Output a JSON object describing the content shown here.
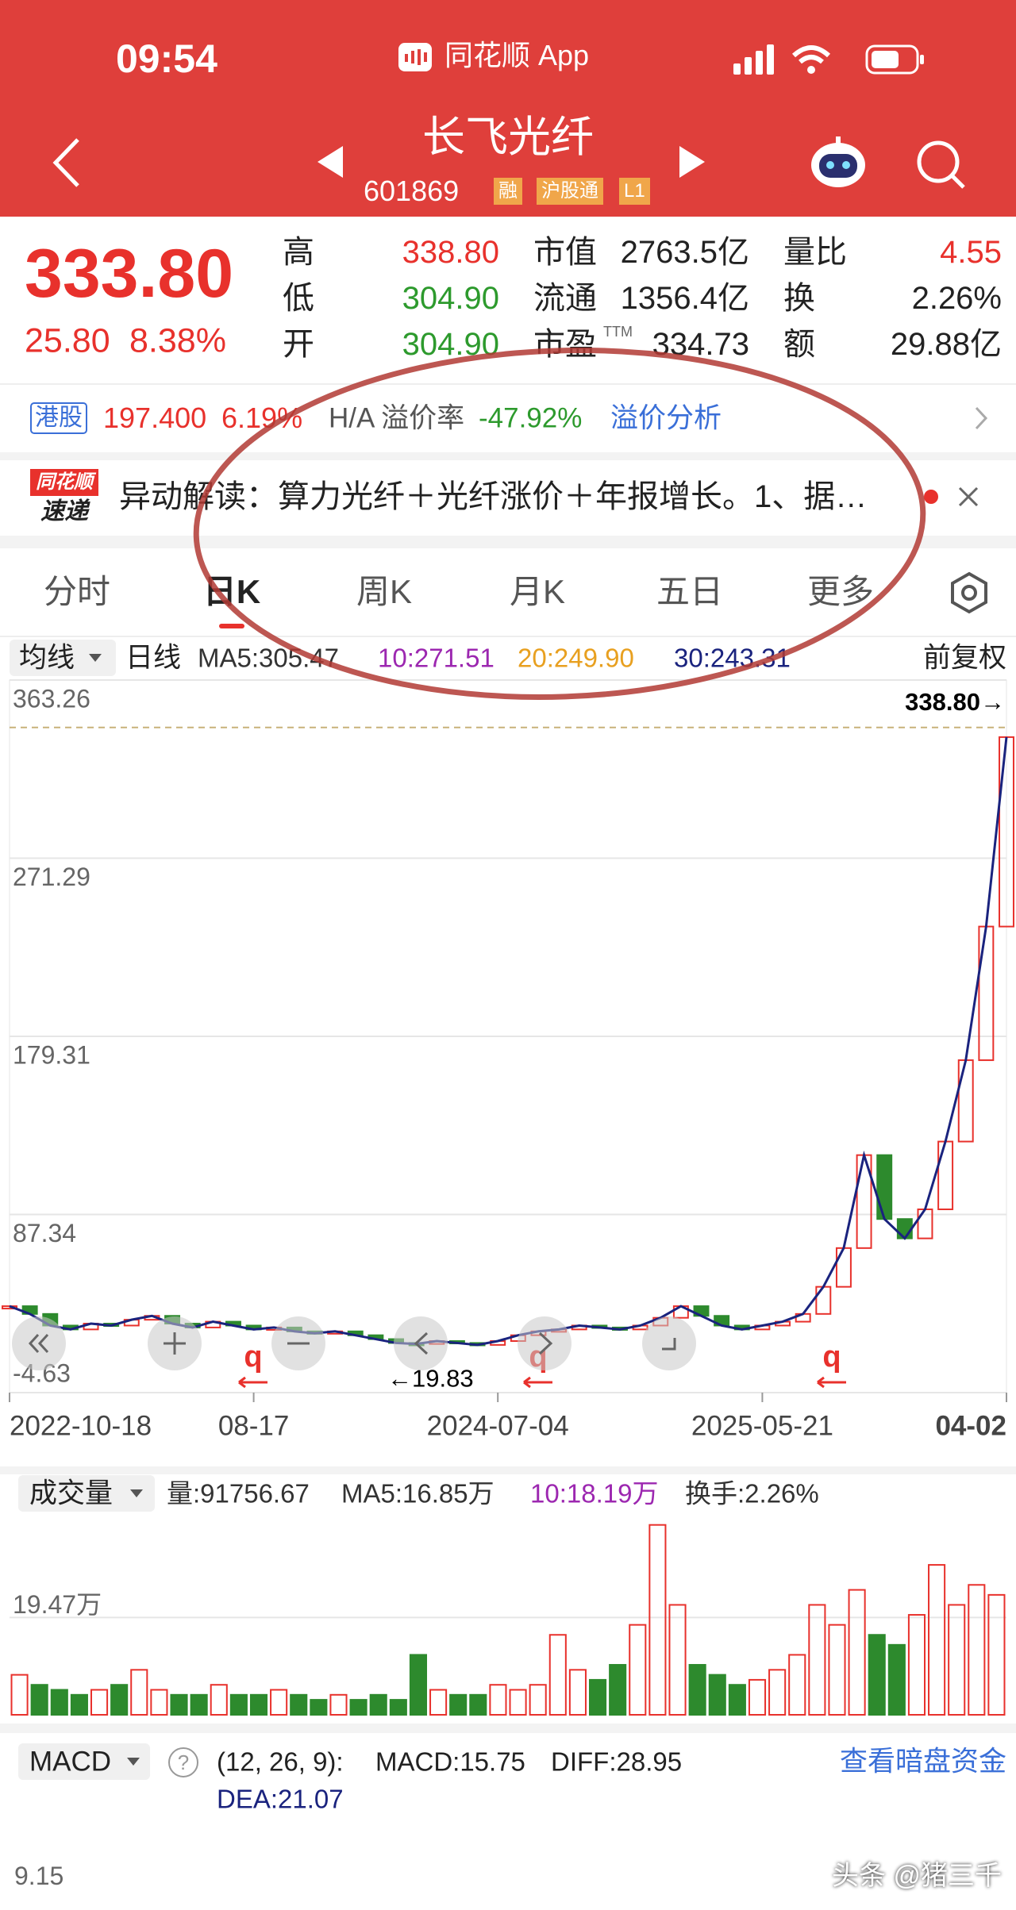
{
  "status_bar": {
    "time": "09:54",
    "app": "同花顺 App"
  },
  "header": {
    "title": "长飞光纤",
    "code": "601869",
    "tags": [
      "融",
      "沪股通",
      "L1"
    ]
  },
  "quote": {
    "price": "333.80",
    "change": "25.80",
    "change_pct": "8.38%",
    "stats": [
      {
        "label": "高",
        "value": "338.80"
      },
      {
        "label": "低",
        "value": "304.90"
      },
      {
        "label": "开",
        "value": "304.90"
      },
      {
        "label": "市值",
        "value": "2763.5亿"
      },
      {
        "label": "流通",
        "value": "1356.4亿"
      },
      {
        "label": "市盈",
        "sup": "TTM",
        "value": "334.73"
      },
      {
        "label": "量比",
        "value": "4.55"
      },
      {
        "label": "换",
        "value": "2.26%"
      },
      {
        "label": "额",
        "value": "29.88亿"
      }
    ]
  },
  "hk": {
    "label": "港股",
    "price": "197.400",
    "pct": "6.19%",
    "premium_label": "H/A 溢价率",
    "premium": "-47.92%",
    "link": "溢价分析"
  },
  "news": {
    "logo_top": "同花顺",
    "logo_bottom": "速递",
    "text": "异动解读：算力光纤＋光纤涨价＋年报增长。1、据…"
  },
  "tabs": [
    "分时",
    "日K",
    "周K",
    "月K",
    "五日",
    "更多"
  ],
  "active_tab": 1,
  "ma_bar": {
    "menu": "均线",
    "period": "日线",
    "ma5": "MA5:305.47",
    "ma10": "10:271.51",
    "ma20": "20:249.90",
    "ma30": "30:243.31",
    "adjust": "前复权"
  },
  "chart": {
    "type": "candlestick",
    "ylim": [
      -4.63,
      363.26
    ],
    "yticks": [
      363.26,
      271.29,
      179.31,
      87.34,
      -4.63
    ],
    "categories": [
      "2022-10-18",
      null,
      null,
      null,
      null,
      null,
      null,
      null,
      null,
      null,
      null,
      null,
      "08-17",
      null,
      null,
      null,
      null,
      null,
      null,
      null,
      null,
      null,
      null,
      null,
      "2024-07-04",
      null,
      null,
      null,
      null,
      null,
      null,
      null,
      null,
      null,
      null,
      null,
      null,
      "2025-05-21",
      null,
      null,
      null,
      null,
      null,
      null,
      null,
      null,
      null,
      null,
      null,
      "04-02"
    ],
    "close": [
      40,
      36,
      30,
      28,
      31,
      30,
      33,
      35,
      31,
      29,
      32,
      30,
      28,
      29,
      27,
      26,
      27,
      25,
      23,
      21,
      20.5,
      22,
      21,
      20,
      22,
      25,
      27,
      28,
      30,
      29,
      28,
      30,
      34,
      40,
      35,
      30,
      28,
      30,
      32,
      36,
      50,
      70,
      118,
      85,
      75,
      90,
      125,
      167,
      236,
      333.8
    ],
    "high_marker": {
      "value": 338.8,
      "label": "338.80→"
    },
    "min_marker": {
      "value": 19.83,
      "label": "←19.83"
    },
    "markers": [
      "q",
      "q",
      "q"
    ],
    "up_color": "#e8312c",
    "down_color": "#2d8a2d",
    "line_color": "#1a237e"
  },
  "volume": {
    "menu": "成交量",
    "vol": "量:91756.67",
    "ma5": "MA5:16.85万",
    "ma10": "10:18.19万",
    "turnover": "换手:2.26%",
    "ylim": [
      0,
      39.7
    ],
    "yticks": [
      {
        "value": 19.47,
        "label": "19.47万"
      }
    ],
    "values": [
      8,
      6,
      5,
      4,
      5,
      6,
      9,
      5,
      4,
      4,
      6,
      4,
      4,
      5,
      4,
      3,
      4,
      3,
      4,
      3,
      12,
      5,
      4,
      4,
      6,
      5,
      6,
      16,
      9,
      7,
      10,
      18,
      38,
      22,
      10,
      8,
      6,
      7,
      9,
      12,
      22,
      18,
      25,
      16,
      14,
      20,
      30,
      22,
      26,
      24
    ]
  },
  "macd": {
    "menu": "MACD",
    "help": "?",
    "params": "(12, 26, 9):",
    "macd": "MACD:15.75",
    "diff": "DIFF:28.95",
    "dea": "DEA:21.07",
    "link": "查看暗盘资金",
    "tick": "9.15"
  },
  "watermark": "头条 @猪三千"
}
